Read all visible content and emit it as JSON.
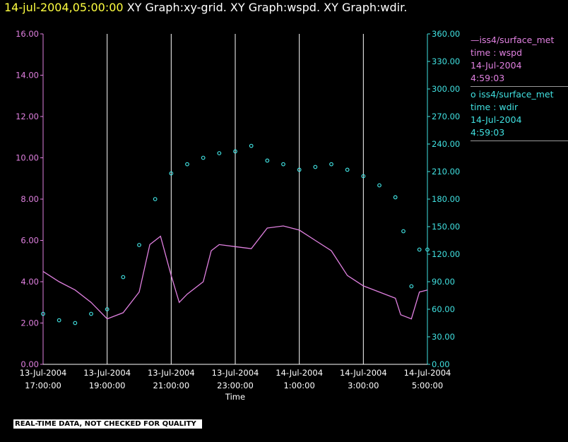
{
  "header": {
    "timestamp": "14-jul-2004,05:00:00",
    "graphs": "  XY Graph:xy-grid.  XY Graph:wspd.  XY Graph:wdir."
  },
  "legend": {
    "entries": [
      {
        "line1": "—iss4/surface_met",
        "line2": "time : wspd",
        "line3": "14-Jul-2004",
        "line4": "4:59:03",
        "color": "#e080e0"
      },
      {
        "line1": "o  iss4/surface_met",
        "line2": "time : wdir",
        "line3": "14-Jul-2004",
        "line4": "4:59:03",
        "color": "#40e0e0"
      }
    ]
  },
  "footer": {
    "quality_note": "REAL-TIME DATA, NOT CHECKED FOR QUALITY"
  },
  "colors": {
    "background": "#000000",
    "wspd": "#e080e0",
    "wdir": "#40e0e0",
    "grid": "#ffffff",
    "axis_text": "#ffffff"
  },
  "chart_data": {
    "type": "line",
    "xlabel": "Time",
    "x_ticks": [
      {
        "top": "13-Jul-2004",
        "bottom": "17:00:00"
      },
      {
        "top": "13-Jul-2004",
        "bottom": "19:00:00"
      },
      {
        "top": "13-Jul-2004",
        "bottom": "21:00:00"
      },
      {
        "top": "13-Jul-2004",
        "bottom": "23:00:00"
      },
      {
        "top": "14-Jul-2004",
        "bottom": "1:00:00"
      },
      {
        "top": "14-Jul-2004",
        "bottom": "3:00:00"
      },
      {
        "top": "14-Jul-2004",
        "bottom": "5:00:00"
      }
    ],
    "xlim": [
      "13-Jul-2004 17:00:00",
      "14-Jul-2004 05:00:00"
    ],
    "grid": "vertical lines at each labeled time",
    "left_axis": {
      "ylim": [
        0,
        16
      ],
      "ticks": [
        "0.00",
        "2.00",
        "4.00",
        "6.00",
        "8.00",
        "10.00",
        "12.00",
        "14.00",
        "16.00"
      ],
      "color": "#e080e0"
    },
    "right_axis": {
      "ylim": [
        0,
        360
      ],
      "ticks": [
        "0.00",
        "30.00",
        "60.00",
        "90.00",
        "120.00",
        "150.00",
        "180.00",
        "210.00",
        "240.00",
        "270.00",
        "300.00",
        "330.00",
        "360.00"
      ],
      "color": "#40e0e0"
    },
    "series": [
      {
        "name": "iss4/surface_met time : wspd",
        "style": "line",
        "axis": "left",
        "times": [
          "13-Jul-2004 17:00",
          "13-Jul-2004 17:30",
          "13-Jul-2004 18:00",
          "13-Jul-2004 18:30",
          "13-Jul-2004 19:00",
          "13-Jul-2004 19:30",
          "13-Jul-2004 20:00",
          "13-Jul-2004 20:20",
          "13-Jul-2004 20:40",
          "13-Jul-2004 21:00",
          "13-Jul-2004 21:15",
          "13-Jul-2004 21:30",
          "13-Jul-2004 22:00",
          "13-Jul-2004 22:15",
          "13-Jul-2004 22:30",
          "13-Jul-2004 23:00",
          "13-Jul-2004 23:30",
          "14-Jul-2004 00:00",
          "14-Jul-2004 00:30",
          "14-Jul-2004 01:00",
          "14-Jul-2004 01:30",
          "14-Jul-2004 02:00",
          "14-Jul-2004 02:30",
          "14-Jul-2004 03:00",
          "14-Jul-2004 03:30",
          "14-Jul-2004 04:00",
          "14-Jul-2004 04:10",
          "14-Jul-2004 04:30",
          "14-Jul-2004 04:45",
          "14-Jul-2004 05:00"
        ],
        "values": [
          4.5,
          4.0,
          3.6,
          3.0,
          2.2,
          2.5,
          3.5,
          5.8,
          6.2,
          4.3,
          3.0,
          3.4,
          4.0,
          5.5,
          5.8,
          5.7,
          5.6,
          6.6,
          6.7,
          6.5,
          6.0,
          5.5,
          4.3,
          3.8,
          3.5,
          3.2,
          2.4,
          2.2,
          3.5,
          3.6
        ]
      },
      {
        "name": "iss4/surface_met time : wdir",
        "style": "scatter",
        "axis": "right",
        "times": [
          "13-Jul-2004 17:00",
          "13-Jul-2004 17:30",
          "13-Jul-2004 18:00",
          "13-Jul-2004 18:30",
          "13-Jul-2004 19:00",
          "13-Jul-2004 19:30",
          "13-Jul-2004 20:00",
          "13-Jul-2004 20:30",
          "13-Jul-2004 21:00",
          "13-Jul-2004 21:30",
          "13-Jul-2004 22:00",
          "13-Jul-2004 22:30",
          "13-Jul-2004 23:00",
          "13-Jul-2004 23:30",
          "14-Jul-2004 00:00",
          "14-Jul-2004 00:30",
          "14-Jul-2004 01:00",
          "14-Jul-2004 01:30",
          "14-Jul-2004 02:00",
          "14-Jul-2004 02:30",
          "14-Jul-2004 03:00",
          "14-Jul-2004 03:30",
          "14-Jul-2004 04:00",
          "14-Jul-2004 04:15",
          "14-Jul-2004 04:30",
          "14-Jul-2004 04:45",
          "14-Jul-2004 05:00"
        ],
        "values": [
          55,
          48,
          45,
          55,
          60,
          95,
          130,
          180,
          208,
          218,
          225,
          230,
          232,
          238,
          222,
          218,
          212,
          215,
          218,
          212,
          205,
          195,
          182,
          145,
          85,
          125,
          125
        ]
      }
    ]
  }
}
